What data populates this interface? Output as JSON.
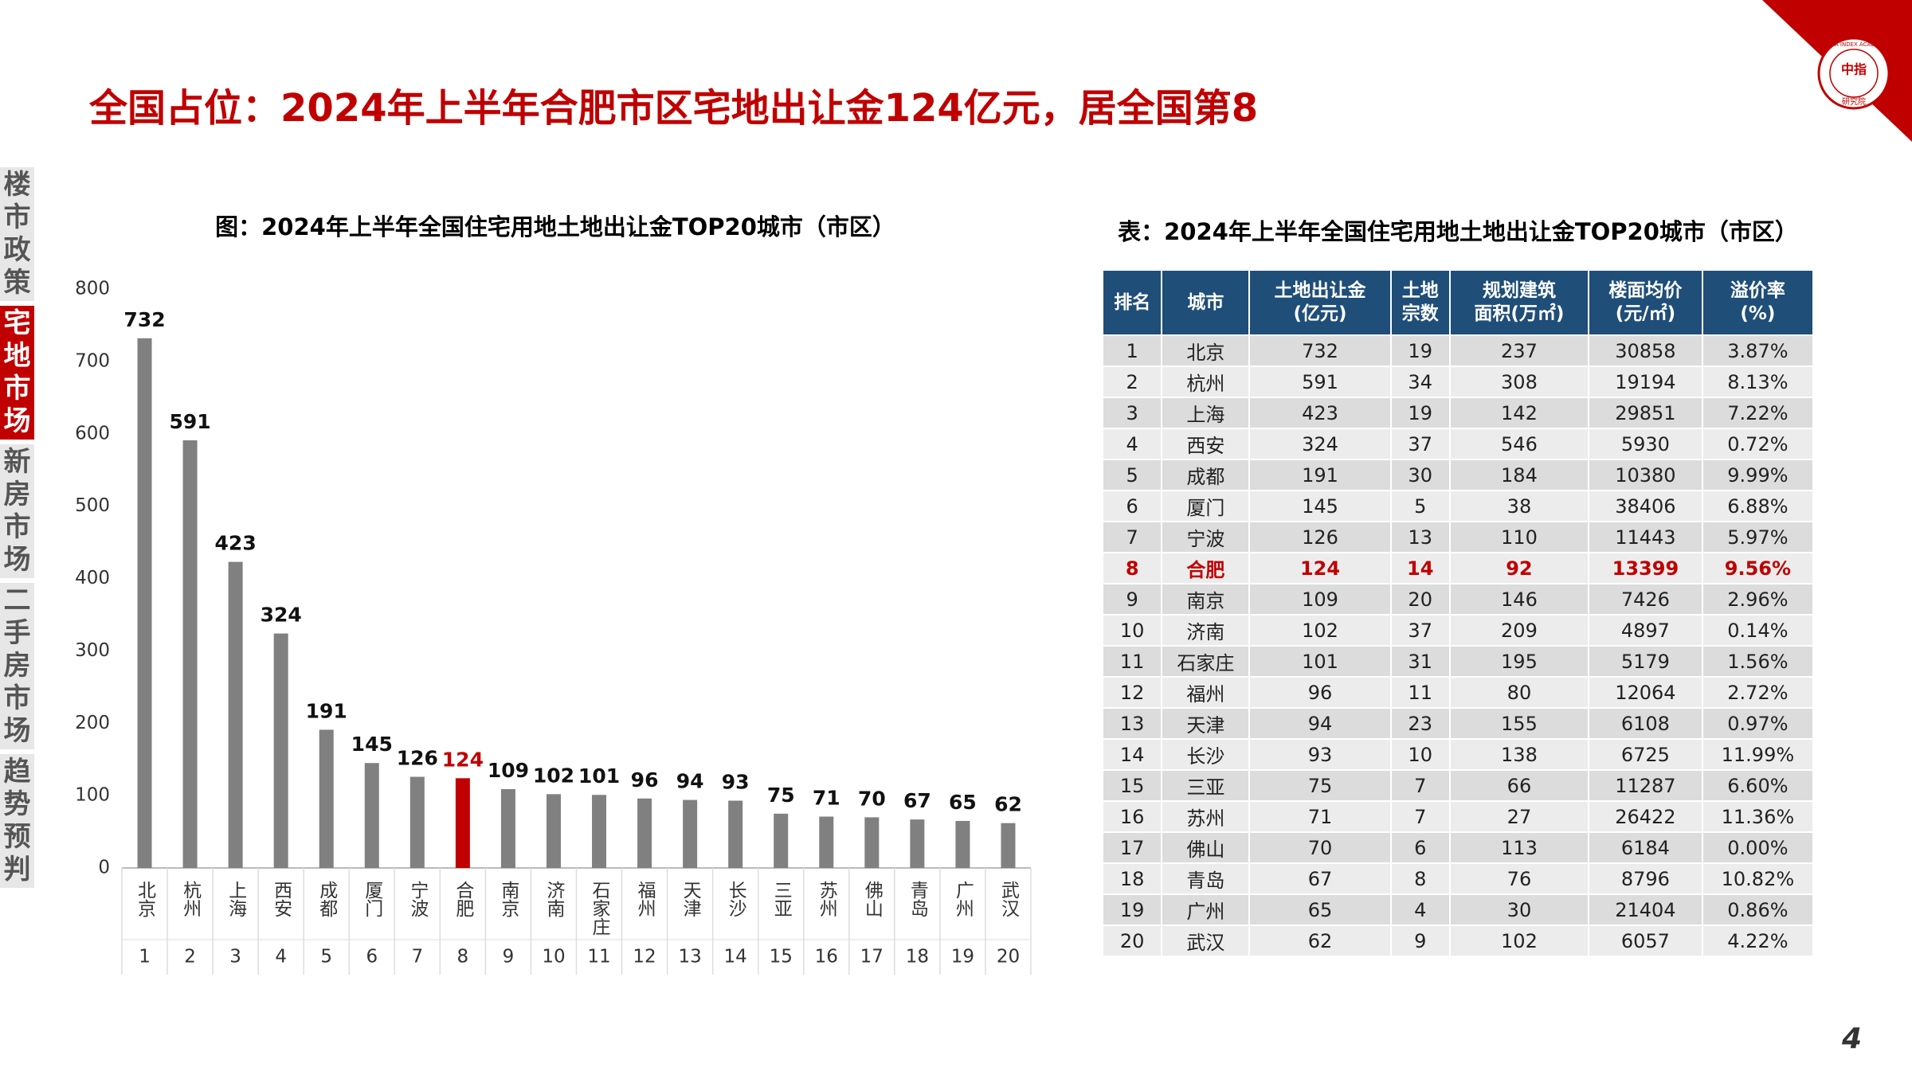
{
  "title": "全国占位：2024年上半年合肥市区宅地出让金124亿元，居全国第8",
  "sidebar": {
    "tabs": [
      {
        "label": "楼市政策",
        "active": false
      },
      {
        "label": "宅地市场",
        "active": true
      },
      {
        "label": "新房市场",
        "active": false
      },
      {
        "label": "二手房市场",
        "active": false
      },
      {
        "label": "趋势预判",
        "active": false
      }
    ]
  },
  "logo": {
    "center": "中指",
    "bottom": "研究院",
    "ring": "CHINA INDEX ACADEMY"
  },
  "chart_data": {
    "type": "bar",
    "title": "图：2024年上半年全国住宅用地土地出让金TOP20城市（市区）",
    "categories": [
      "北京",
      "杭州",
      "上海",
      "西安",
      "成都",
      "厦门",
      "宁波",
      "合肥",
      "南京",
      "济南",
      "石家庄",
      "福州",
      "天津",
      "长沙",
      "三亚",
      "苏州",
      "佛山",
      "青岛",
      "广州",
      "武汉"
    ],
    "ranks": [
      1,
      2,
      3,
      4,
      5,
      6,
      7,
      8,
      9,
      10,
      11,
      12,
      13,
      14,
      15,
      16,
      17,
      18,
      19,
      20
    ],
    "values": [
      732,
      591,
      423,
      324,
      191,
      145,
      126,
      124,
      109,
      102,
      101,
      96,
      94,
      93,
      75,
      71,
      70,
      67,
      65,
      62
    ],
    "colors": [
      "#808080",
      "#808080",
      "#808080",
      "#808080",
      "#808080",
      "#808080",
      "#808080",
      "#c00000",
      "#808080",
      "#808080",
      "#808080",
      "#808080",
      "#808080",
      "#808080",
      "#808080",
      "#808080",
      "#808080",
      "#808080",
      "#808080",
      "#808080"
    ],
    "ylim": [
      0,
      800
    ],
    "yticks": [
      0,
      100,
      200,
      300,
      400,
      500,
      600,
      700,
      800
    ],
    "grid": false
  },
  "table": {
    "title": "表：2024年上半年全国住宅用地土地出让金TOP20城市（市区）",
    "header": [
      [
        "排名"
      ],
      [
        "城市"
      ],
      [
        "土地出让金",
        "(亿元)"
      ],
      [
        "土地",
        "宗数"
      ],
      [
        "规划建筑",
        "面积(万㎡)"
      ],
      [
        "楼面均价",
        "(元/㎡)"
      ],
      [
        "溢价率",
        "(%)"
      ]
    ],
    "rows": [
      [
        "1",
        "北京",
        "732",
        "19",
        "237",
        "30858",
        "3.87%"
      ],
      [
        "2",
        "杭州",
        "591",
        "34",
        "308",
        "19194",
        "8.13%"
      ],
      [
        "3",
        "上海",
        "423",
        "19",
        "142",
        "29851",
        "7.22%"
      ],
      [
        "4",
        "西安",
        "324",
        "37",
        "546",
        "5930",
        "0.72%"
      ],
      [
        "5",
        "成都",
        "191",
        "30",
        "184",
        "10380",
        "9.99%"
      ],
      [
        "6",
        "厦门",
        "145",
        "5",
        "38",
        "38406",
        "6.88%"
      ],
      [
        "7",
        "宁波",
        "126",
        "13",
        "110",
        "11443",
        "5.97%"
      ],
      [
        "8",
        "合肥",
        "124",
        "14",
        "92",
        "13399",
        "9.56%"
      ],
      [
        "9",
        "南京",
        "109",
        "20",
        "146",
        "7426",
        "2.96%"
      ],
      [
        "10",
        "济南",
        "102",
        "37",
        "209",
        "4897",
        "0.14%"
      ],
      [
        "11",
        "石家庄",
        "101",
        "31",
        "195",
        "5179",
        "1.56%"
      ],
      [
        "12",
        "福州",
        "96",
        "11",
        "80",
        "12064",
        "2.72%"
      ],
      [
        "13",
        "天津",
        "94",
        "23",
        "155",
        "6108",
        "0.97%"
      ],
      [
        "14",
        "长沙",
        "93",
        "10",
        "138",
        "6725",
        "11.99%"
      ],
      [
        "15",
        "三亚",
        "75",
        "7",
        "66",
        "11287",
        "6.60%"
      ],
      [
        "16",
        "苏州",
        "71",
        "7",
        "27",
        "26422",
        "11.36%"
      ],
      [
        "17",
        "佛山",
        "70",
        "6",
        "113",
        "6184",
        "0.00%"
      ],
      [
        "18",
        "青岛",
        "67",
        "8",
        "76",
        "8796",
        "10.82%"
      ],
      [
        "19",
        "广州",
        "65",
        "4",
        "30",
        "21404",
        "0.86%"
      ],
      [
        "20",
        "武汉",
        "62",
        "9",
        "102",
        "6057",
        "4.22%"
      ]
    ],
    "highlight_row": 7,
    "highlight_color": "#c00000"
  },
  "page_number": "4"
}
